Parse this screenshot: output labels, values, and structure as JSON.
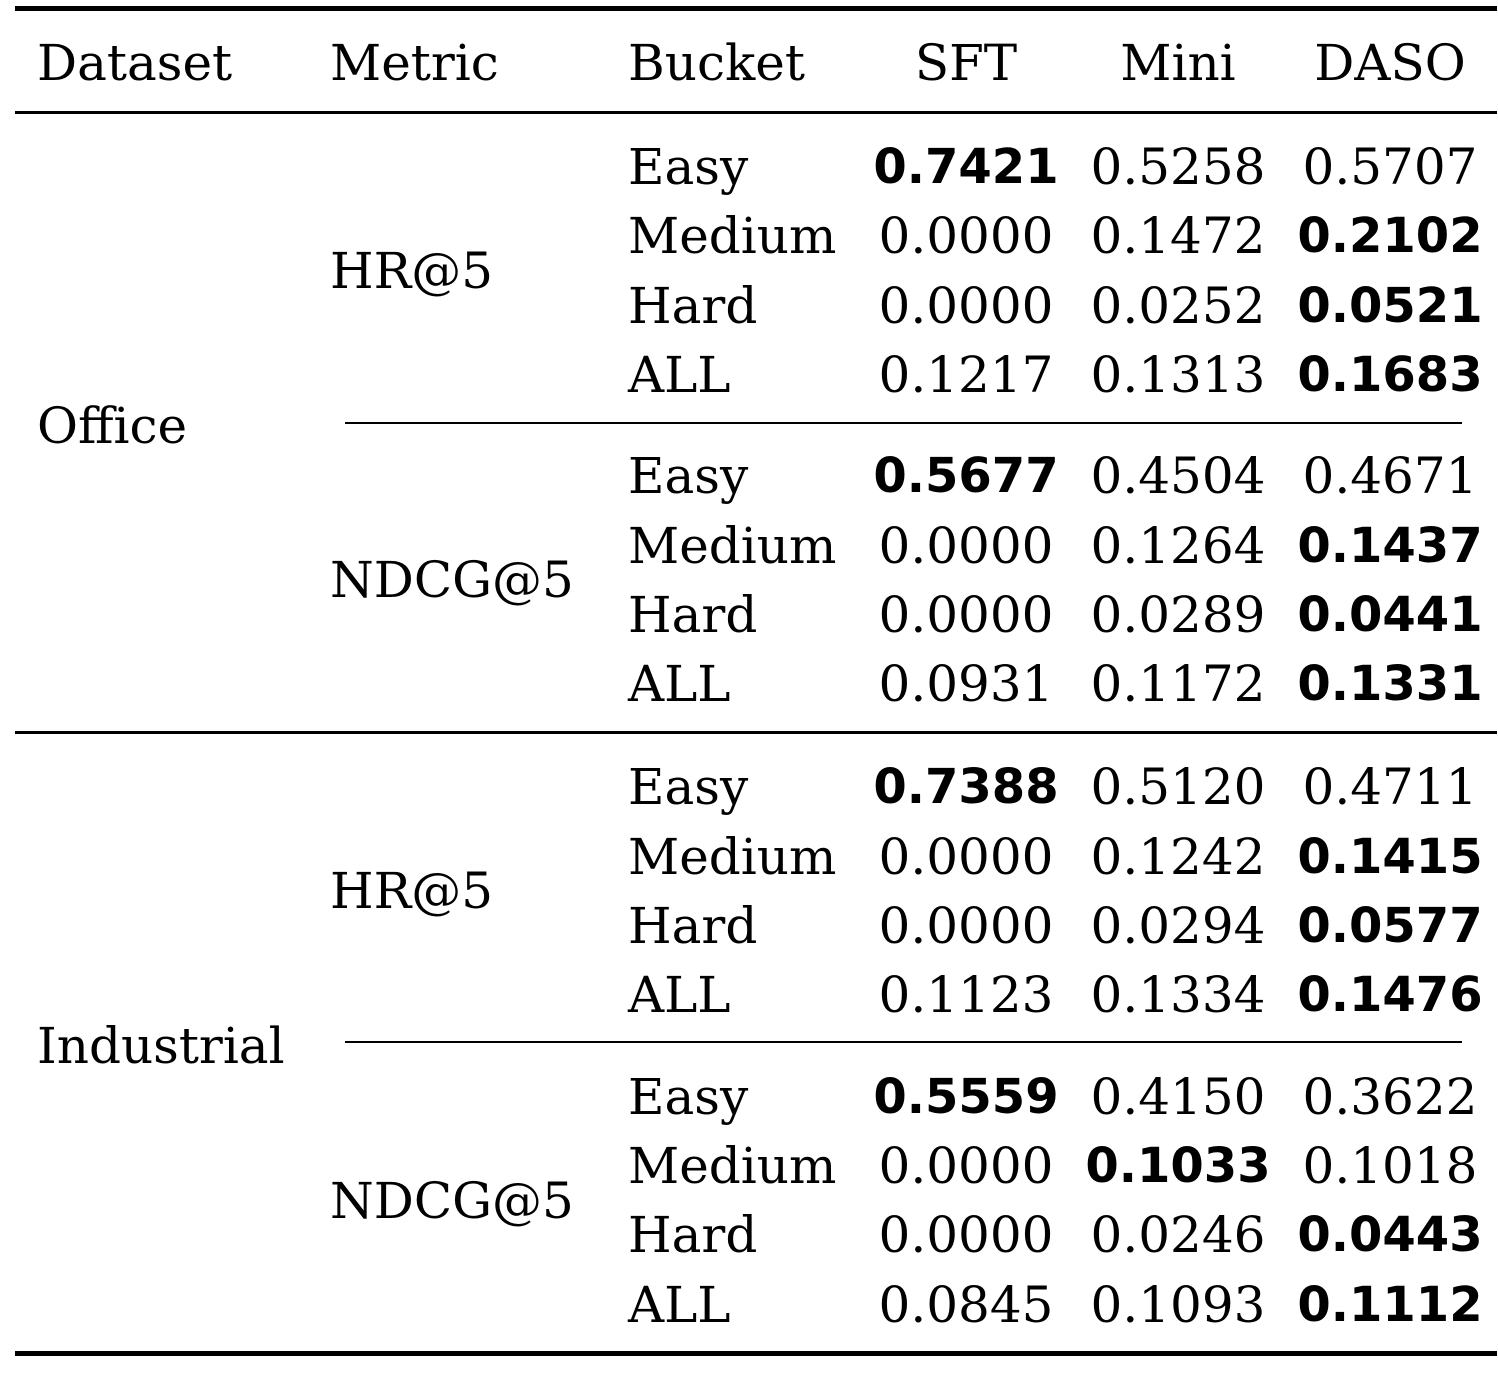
{
  "table": {
    "headers": [
      "Dataset",
      "Metric",
      "Bucket",
      "SFT",
      "Mini",
      "DASO"
    ],
    "groups": [
      {
        "dataset": "Office",
        "metrics": [
          {
            "name": "HR@5",
            "rows": [
              {
                "bucket": "Easy",
                "values": [
                  "0.7421",
                  "0.5258",
                  "0.5707"
                ],
                "best": 0
              },
              {
                "bucket": "Medium",
                "values": [
                  "0.0000",
                  "0.1472",
                  "0.2102"
                ],
                "best": 2
              },
              {
                "bucket": "Hard",
                "values": [
                  "0.0000",
                  "0.0252",
                  "0.0521"
                ],
                "best": 2
              },
              {
                "bucket": "ALL",
                "values": [
                  "0.1217",
                  "0.1313",
                  "0.1683"
                ],
                "best": 2
              }
            ]
          },
          {
            "name": "NDCG@5",
            "rows": [
              {
                "bucket": "Easy",
                "values": [
                  "0.5677",
                  "0.4504",
                  "0.4671"
                ],
                "best": 0
              },
              {
                "bucket": "Medium",
                "values": [
                  "0.0000",
                  "0.1264",
                  "0.1437"
                ],
                "best": 2
              },
              {
                "bucket": "Hard",
                "values": [
                  "0.0000",
                  "0.0289",
                  "0.0441"
                ],
                "best": 2
              },
              {
                "bucket": "ALL",
                "values": [
                  "0.0931",
                  "0.1172",
                  "0.1331"
                ],
                "best": 2
              }
            ]
          }
        ]
      },
      {
        "dataset": "Industrial",
        "metrics": [
          {
            "name": "HR@5",
            "rows": [
              {
                "bucket": "Easy",
                "values": [
                  "0.7388",
                  "0.5120",
                  "0.4711"
                ],
                "best": 0
              },
              {
                "bucket": "Medium",
                "values": [
                  "0.0000",
                  "0.1242",
                  "0.1415"
                ],
                "best": 2
              },
              {
                "bucket": "Hard",
                "values": [
                  "0.0000",
                  "0.0294",
                  "0.0577"
                ],
                "best": 2
              },
              {
                "bucket": "ALL",
                "values": [
                  "0.1123",
                  "0.1334",
                  "0.1476"
                ],
                "best": 2
              }
            ]
          },
          {
            "name": "NDCG@5",
            "rows": [
              {
                "bucket": "Easy",
                "values": [
                  "0.5559",
                  "0.4150",
                  "0.3622"
                ],
                "best": 0
              },
              {
                "bucket": "Medium",
                "values": [
                  "0.0000",
                  "0.1033",
                  "0.1018"
                ],
                "best": 1
              },
              {
                "bucket": "Hard",
                "values": [
                  "0.0000",
                  "0.0246",
                  "0.0443"
                ],
                "best": 2
              },
              {
                "bucket": "ALL",
                "values": [
                  "0.0845",
                  "0.1093",
                  "0.1112"
                ],
                "best": 2
              }
            ]
          }
        ]
      }
    ]
  }
}
